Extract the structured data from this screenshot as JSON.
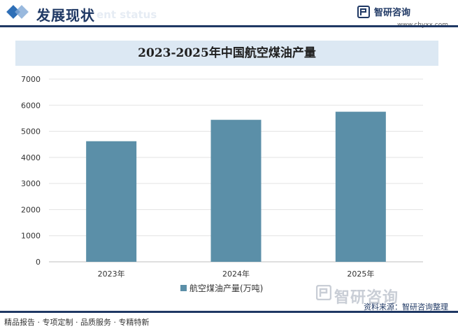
{
  "header": {
    "title": "发展现状",
    "ghost_subtitle": "ent status"
  },
  "brand": {
    "name": "智研咨询",
    "url": "www.chyxx.com"
  },
  "colors": {
    "bar": "#5b8fa8",
    "header_navy": "#1f3864",
    "title_band": "#dce8f3"
  },
  "chart_data": {
    "type": "bar",
    "title": "2023-2025年中国航空煤油产量",
    "categories": [
      "2023年",
      "2024年",
      "2025年"
    ],
    "series": [
      {
        "name": "航空煤油产量(万吨)",
        "values": [
          4620,
          5440,
          5750
        ]
      }
    ],
    "ylim": [
      0,
      7000
    ],
    "yticks": [
      0,
      1000,
      2000,
      3000,
      4000,
      5000,
      6000,
      7000
    ],
    "grid": true,
    "legend": "bottom"
  },
  "watermark": {
    "text": "智研咨询"
  },
  "source": "资料来源：智研咨询整理",
  "footer": {
    "text": "精品报告 · 专项定制 · 品质服务 · 专精特新"
  }
}
